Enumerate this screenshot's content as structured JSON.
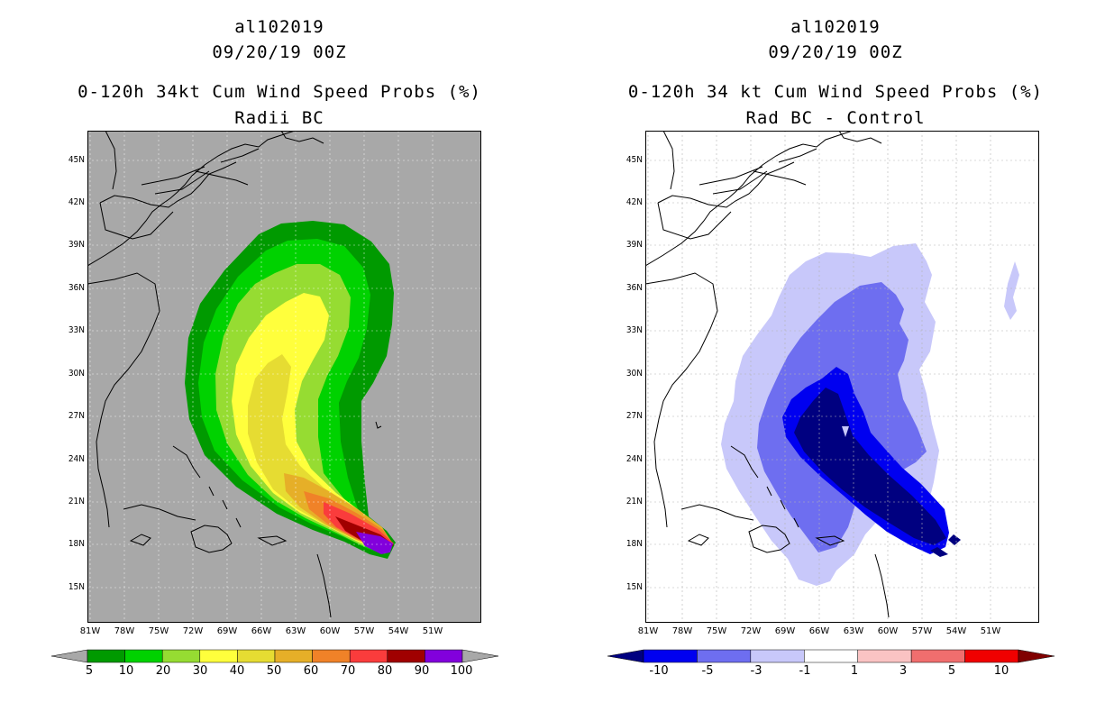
{
  "left": {
    "storm_id": "al102019",
    "datetime": "09/20/19 00Z",
    "title": "0-120h 34kt Cum Wind Speed Probs (%)",
    "subtitle": "Radii BC",
    "colorbar": {
      "labels": [
        "5",
        "10",
        "20",
        "30",
        "40",
        "50",
        "60",
        "70",
        "80",
        "90",
        "100"
      ],
      "colors": [
        "#a8a8a8",
        "#009a00",
        "#00d200",
        "#96dc32",
        "#ffff3c",
        "#e6dc32",
        "#e6af28",
        "#f08228",
        "#fa3c3c",
        "#a00000",
        "#8200dc",
        "#a8a8a8"
      ]
    }
  },
  "right": {
    "storm_id": "al102019",
    "datetime": "09/20/19 00Z",
    "title": "0-120h 34 kt Cum Wind Speed Probs (%)",
    "subtitle": "Rad BC - Control",
    "colorbar": {
      "labels": [
        "-10",
        "-5",
        "-3",
        "-1",
        "1",
        "3",
        "5",
        "10"
      ],
      "colors": [
        "#000080",
        "#0000f0",
        "#6e6ef0",
        "#c8c8fa",
        "#ffffff",
        "#fac3c3",
        "#f06e6e",
        "#f00000",
        "#800000"
      ]
    }
  },
  "axes": {
    "lat_labels": [
      "45N",
      "42N",
      "39N",
      "36N",
      "33N",
      "30N",
      "27N",
      "24N",
      "21N",
      "18N",
      "15N"
    ],
    "lon_labels": [
      "81W",
      "78W",
      "75W",
      "72W",
      "69W",
      "66W",
      "63W",
      "60W",
      "57W",
      "54W",
      "51W"
    ]
  }
}
